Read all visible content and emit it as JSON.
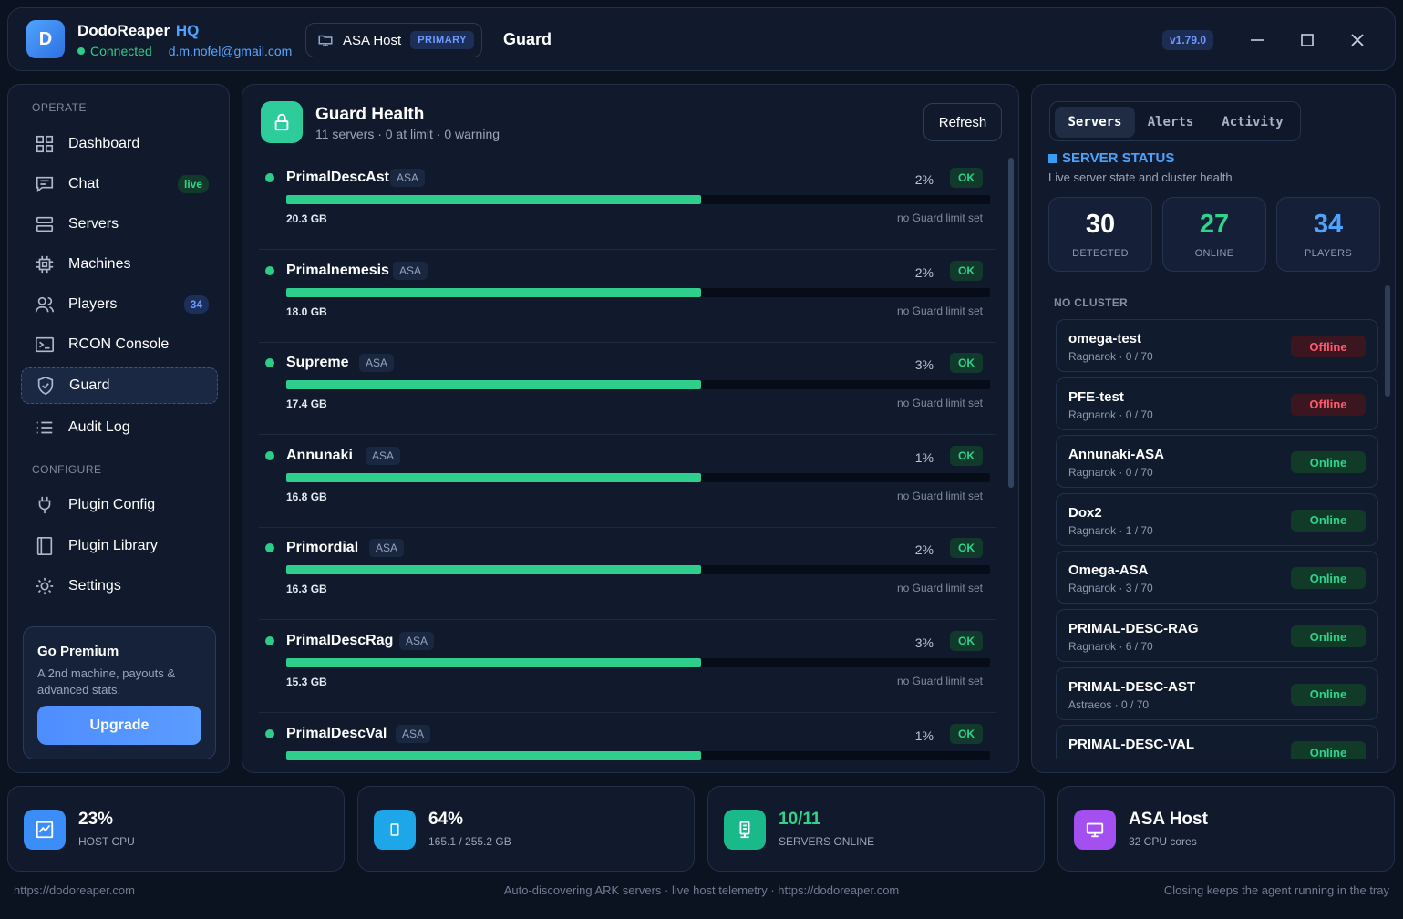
{
  "header": {
    "avatar_letter": "D",
    "brand": "DodoReaper",
    "brand_suffix": "HQ",
    "status": "Connected",
    "email": "d.m.nofel@gmail.com",
    "host_name": "ASA Host",
    "host_badge": "PRIMARY",
    "page_title": "Guard",
    "version": "v1.79.0"
  },
  "sidebar": {
    "section_operate": "OPERATE",
    "section_configure": "CONFIGURE",
    "items": [
      {
        "label": "Dashboard",
        "icon": "grid-icon"
      },
      {
        "label": "Chat",
        "icon": "chat-icon",
        "badge": "live"
      },
      {
        "label": "Servers",
        "icon": "servers-icon"
      },
      {
        "label": "Machines",
        "icon": "chip-icon"
      },
      {
        "label": "Players",
        "icon": "users-icon",
        "badge": "34"
      },
      {
        "label": "RCON Console",
        "icon": "terminal-icon"
      },
      {
        "label": "Guard",
        "icon": "shield-icon",
        "active": true
      },
      {
        "label": "Audit Log",
        "icon": "list-icon"
      },
      {
        "label": "Plugin Config",
        "icon": "plug-icon"
      },
      {
        "label": "Plugin Library",
        "icon": "book-icon"
      },
      {
        "label": "Settings",
        "icon": "sun-gear-icon"
      }
    ],
    "premium": {
      "title": "Go Premium",
      "desc": "A 2nd machine, payouts & advanced stats.",
      "button": "Upgrade"
    }
  },
  "guard": {
    "title": "Guard Health",
    "subtitle": "11 servers · 0 at limit · 0 warning",
    "refresh": "Refresh",
    "rows": [
      {
        "name": "PrimalDescAst",
        "tag": "ASA",
        "pct": "2%",
        "status": "OK",
        "size": "20.3 GB",
        "limit": "no Guard limit set",
        "fill": 0.59
      },
      {
        "name": "Primalnemesis",
        "tag": "ASA",
        "pct": "2%",
        "status": "OK",
        "size": "18.0 GB",
        "limit": "no Guard limit set",
        "fill": 0.59
      },
      {
        "name": "Supreme",
        "tag": "ASA",
        "pct": "3%",
        "status": "OK",
        "size": "17.4 GB",
        "limit": "no Guard limit set",
        "fill": 0.59
      },
      {
        "name": "Annunaki",
        "tag": "ASA",
        "pct": "1%",
        "status": "OK",
        "size": "16.8 GB",
        "limit": "no Guard limit set",
        "fill": 0.59
      },
      {
        "name": "Primordial",
        "tag": "ASA",
        "pct": "2%",
        "status": "OK",
        "size": "16.3 GB",
        "limit": "no Guard limit set",
        "fill": 0.59
      },
      {
        "name": "PrimalDescRag",
        "tag": "ASA",
        "pct": "3%",
        "status": "OK",
        "size": "15.3 GB",
        "limit": "no Guard limit set",
        "fill": 0.59
      },
      {
        "name": "PrimalDescVal",
        "tag": "ASA",
        "pct": "1%",
        "status": "OK",
        "size": "",
        "limit": "",
        "fill": 0.59
      }
    ]
  },
  "right": {
    "tabs": [
      "Servers",
      "Alerts",
      "Activity"
    ],
    "title": "SERVER STATUS",
    "subtitle": "Live server state and cluster health",
    "stats": [
      {
        "value": "30",
        "label": "DETECTED",
        "color": "#ffffff"
      },
      {
        "value": "27",
        "label": "ONLINE",
        "color": "#2fd38a"
      },
      {
        "value": "34",
        "label": "PLAYERS",
        "color": "#4ea3ff"
      }
    ],
    "group": "NO CLUSTER",
    "servers": [
      {
        "name": "omega-test",
        "map": "Ragnarok",
        "players": "0 / 70",
        "status": "Offline"
      },
      {
        "name": "PFE-test",
        "map": "Ragnarok",
        "players": "0 / 70",
        "status": "Offline"
      },
      {
        "name": "Annunaki-ASA",
        "map": "Ragnarok",
        "players": "0 / 70",
        "status": "Online"
      },
      {
        "name": "Dox2",
        "map": "Ragnarok",
        "players": "1 / 70",
        "status": "Online"
      },
      {
        "name": "Omega-ASA",
        "map": "Ragnarok",
        "players": "3 / 70",
        "status": "Online"
      },
      {
        "name": "PRIMAL-DESC-RAG",
        "map": "Ragnarok",
        "players": "6 / 70",
        "status": "Online"
      },
      {
        "name": "PRIMAL-DESC-AST",
        "map": "Astraeos",
        "players": "0 / 70",
        "status": "Online"
      },
      {
        "name": "PRIMAL-DESC-VAL",
        "map": "",
        "players": "",
        "status": "Online"
      }
    ]
  },
  "bottom": [
    {
      "value": "23%",
      "label": "HOST CPU",
      "icon": "activity-chart-icon",
      "color": "#3b8ef7",
      "value_color": "#ffffff"
    },
    {
      "value": "64%",
      "label": "165.1 / 255.2 GB",
      "icon": "memory-icon",
      "color": "#1ea7e8",
      "value_color": "#ffffff"
    },
    {
      "value": "10/11",
      "label": "SERVERS ONLINE",
      "icon": "server-rack-icon",
      "color": "#19b98a",
      "value_color": "#2fd38a"
    },
    {
      "value": "ASA Host",
      "label": "32 CPU cores",
      "icon": "monitor-icon",
      "color": "#a44ff0",
      "value_color": "#ffffff"
    }
  ],
  "footer": {
    "left": "https://dodoreaper.com",
    "center": "Auto-discovering ARK servers · live host telemetry · https://dodoreaper.com",
    "right": "Closing keeps the agent running in the tray"
  }
}
